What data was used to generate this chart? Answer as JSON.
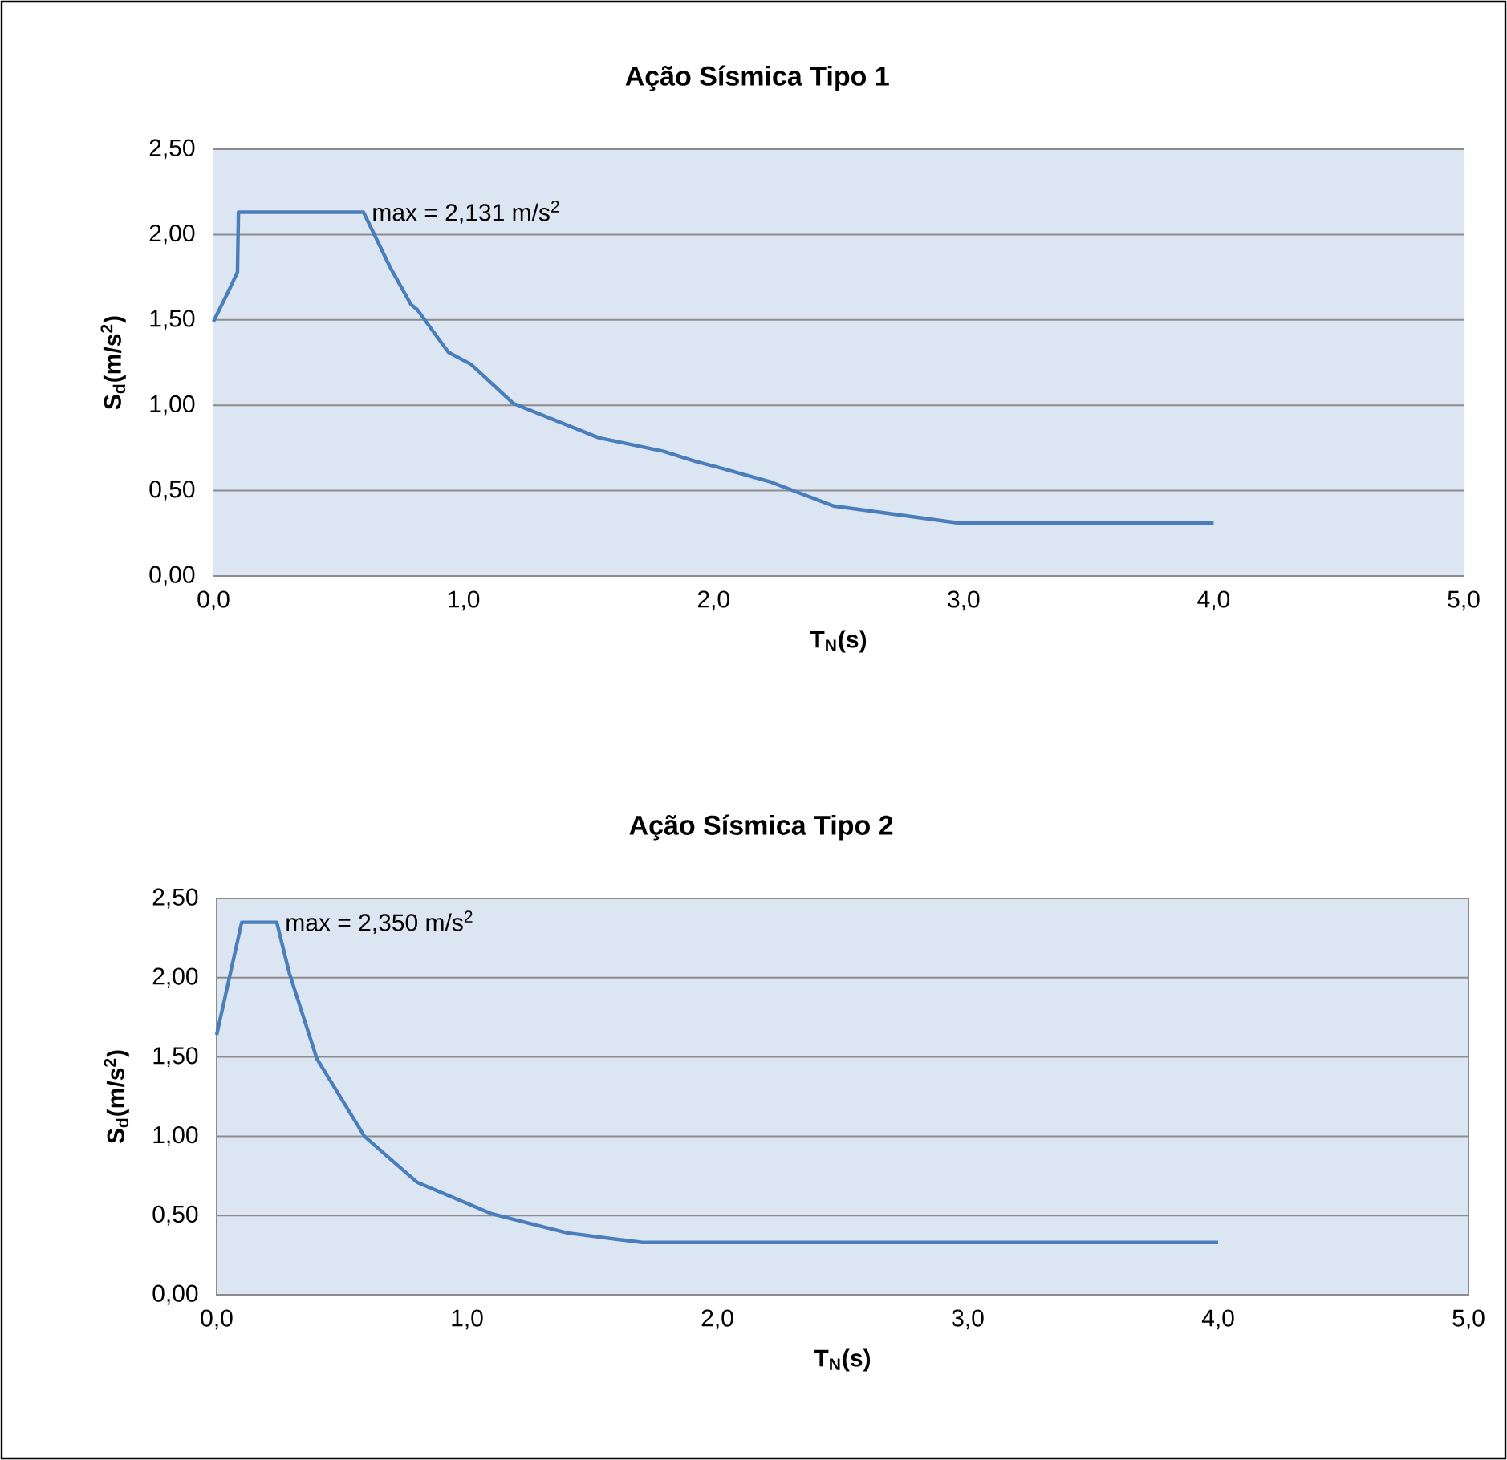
{
  "chart_data": [
    {
      "type": "line",
      "title": "Ação Sísmica Tipo 1",
      "xlabel": "T$_{N}$(s)",
      "ylabel": "S$_{d}$(m/s$^{2}$)",
      "x": [
        0,
        0.064,
        0.096,
        0.1,
        0.6,
        0.706,
        0.79,
        0.815,
        0.94,
        1.03,
        1.2,
        1.54,
        1.8,
        1.93,
        2.01,
        2.23,
        2.48,
        2.98,
        4.0
      ],
      "series": [
        {
          "color": "#4a7ebb",
          "values": [
            1.49,
            1.68,
            1.78,
            2.131,
            2.131,
            1.81,
            1.59,
            1.56,
            1.31,
            1.24,
            1.01,
            0.81,
            0.73,
            0.67,
            0.64,
            0.55,
            0.41,
            0.31,
            0.31
          ]
        }
      ],
      "xlim": [
        0,
        5
      ],
      "ylim": [
        0,
        2.5
      ],
      "xticks": [
        {
          "value": 0,
          "label": "0,0"
        },
        {
          "value": 1,
          "label": "1,0"
        },
        {
          "value": 2,
          "label": "2,0"
        },
        {
          "value": 3,
          "label": "3,0"
        },
        {
          "value": 4,
          "label": "4,0"
        },
        {
          "value": 5,
          "label": "5,0"
        }
      ],
      "yticks": [
        {
          "value": 0,
          "label": "0,00"
        },
        {
          "value": 0.5,
          "label": "0,50"
        },
        {
          "value": 1,
          "label": "1,00"
        },
        {
          "value": 1.5,
          "label": "1,50"
        },
        {
          "value": 2,
          "label": "2,00"
        },
        {
          "value": 2.5,
          "label": "2,50"
        }
      ],
      "grid": "y",
      "annotations": [
        {
          "text": "max = 2,131 m/s$^{2}$",
          "x": 0.6,
          "y": 2.131
        }
      ]
    },
    {
      "type": "line",
      "title": "Ação Sísmica Tipo 2",
      "xlabel": "T$_{N}$(s)",
      "ylabel": "S$_{d}$(m/s$^{2}$)",
      "x": [
        0,
        0.1,
        0.24,
        0.29,
        0.4,
        0.59,
        0.8,
        1.1,
        1.4,
        1.7,
        4.0
      ],
      "series": [
        {
          "color": "#4a7ebb",
          "values": [
            1.64,
            2.35,
            2.35,
            2.03,
            1.49,
            1.0,
            0.71,
            0.51,
            0.39,
            0.33,
            0.33
          ]
        }
      ],
      "xlim": [
        0,
        5
      ],
      "ylim": [
        0,
        2.5
      ],
      "xticks": [
        {
          "value": 0,
          "label": "0,0"
        },
        {
          "value": 1,
          "label": "1,0"
        },
        {
          "value": 2,
          "label": "2,0"
        },
        {
          "value": 3,
          "label": "3,0"
        },
        {
          "value": 4,
          "label": "4,0"
        },
        {
          "value": 5,
          "label": "5,0"
        }
      ],
      "yticks": [
        {
          "value": 0,
          "label": "0,00"
        },
        {
          "value": 0.5,
          "label": "0,50"
        },
        {
          "value": 1,
          "label": "1,00"
        },
        {
          "value": 1.5,
          "label": "1,50"
        },
        {
          "value": 2,
          "label": "2,00"
        },
        {
          "value": 2.5,
          "label": "2,50"
        }
      ],
      "grid": "y",
      "annotations": [
        {
          "text": "max = 2,350 m/s$^{2}$",
          "x": 0.24,
          "y": 2.35
        }
      ]
    }
  ]
}
